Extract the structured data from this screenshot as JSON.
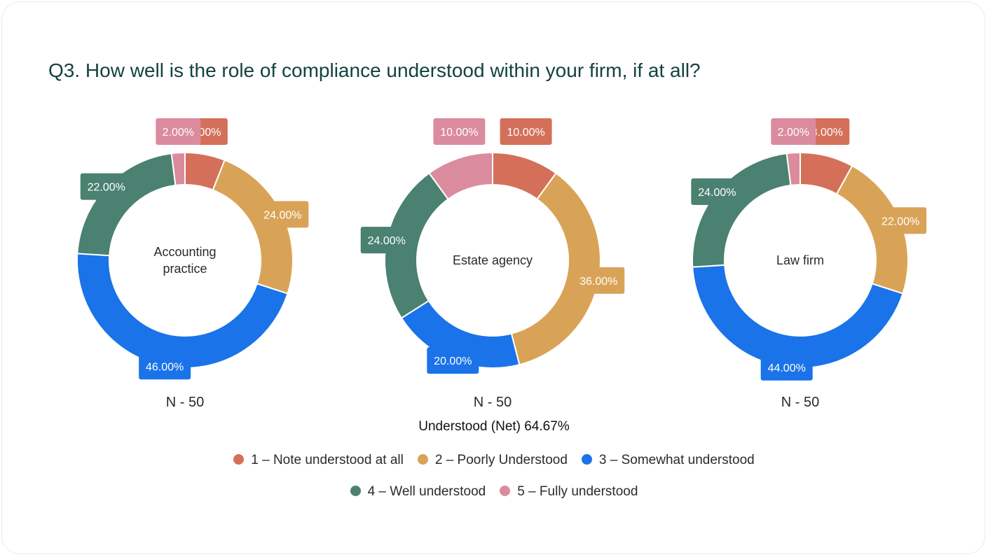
{
  "chart_data": {
    "type": "pie",
    "title": "Q3. How well is the role of compliance understood within your firm, if at all?",
    "categories": [
      "1 – Note understood at all",
      "2 – Poorly Understood",
      "3 – Somewhat understood",
      "4 – Well understood",
      "5 – Fully understood"
    ],
    "colors": [
      "#d4705a",
      "#d9a357",
      "#1a73e8",
      "#4a8170",
      "#db8b9e"
    ],
    "charts": [
      {
        "name": "Accounting practice",
        "n_label": "N - 50",
        "values": [
          6.0,
          24.0,
          46.0,
          22.0,
          2.0
        ],
        "value_labels": [
          "6.00%",
          "24.00%",
          "46.00%",
          "22.00%",
          "2.00%"
        ]
      },
      {
        "name": "Estate agency",
        "n_label": "N - 50",
        "values": [
          10.0,
          36.0,
          20.0,
          24.0,
          10.0
        ],
        "value_labels": [
          "10.00%",
          "36.00%",
          "20.00%",
          "24.00%",
          "10.00%"
        ]
      },
      {
        "name": "Law firm",
        "n_label": "N - 50",
        "values": [
          8.0,
          22.0,
          44.0,
          24.0,
          2.0
        ],
        "value_labels": [
          "8.00%",
          "22.00%",
          "44.00%",
          "24.00%",
          "2.00%"
        ]
      }
    ],
    "net_label": "Understood (Net) 64.67%",
    "legend": {
      "placement": "bottom"
    }
  }
}
